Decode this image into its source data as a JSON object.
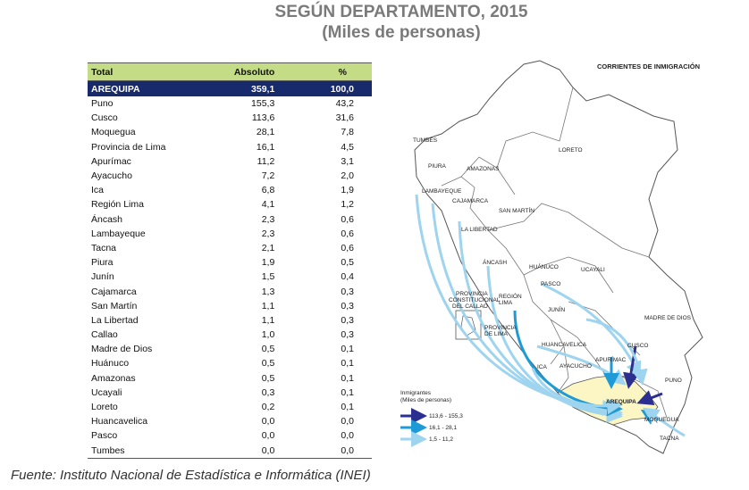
{
  "title": {
    "line1": "SEGÚN DEPARTAMENTO, 2015",
    "line2": "(Miles de personas)"
  },
  "table": {
    "headers": [
      "Total",
      "Absoluto",
      "%"
    ],
    "highlight": {
      "name": "AREQUIPA",
      "abs": "359,1",
      "pct": "100,0"
    },
    "rows": [
      {
        "name": "Puno",
        "abs": "155,3",
        "pct": "43,2"
      },
      {
        "name": "Cusco",
        "abs": "113,6",
        "pct": "31,6"
      },
      {
        "name": "Moquegua",
        "abs": "28,1",
        "pct": "7,8"
      },
      {
        "name": "Provincia de Lima",
        "abs": "16,1",
        "pct": "4,5"
      },
      {
        "name": "Apurímac",
        "abs": "11,2",
        "pct": "3,1"
      },
      {
        "name": "Ayacucho",
        "abs": "7,2",
        "pct": "2,0"
      },
      {
        "name": "Ica",
        "abs": "6,8",
        "pct": "1,9"
      },
      {
        "name": "Región Lima",
        "abs": "4,1",
        "pct": "1,2"
      },
      {
        "name": "Áncash",
        "abs": "2,3",
        "pct": "0,6"
      },
      {
        "name": "Lambayeque",
        "abs": "2,3",
        "pct": "0,6"
      },
      {
        "name": "Tacna",
        "abs": "2,1",
        "pct": "0,6"
      },
      {
        "name": "Piura",
        "abs": "1,9",
        "pct": "0,5"
      },
      {
        "name": "Junín",
        "abs": "1,5",
        "pct": "0,4"
      },
      {
        "name": "Cajamarca",
        "abs": "1,3",
        "pct": "0,3"
      },
      {
        "name": "San Martín",
        "abs": "1,1",
        "pct": "0,3"
      },
      {
        "name": "La Libertad",
        "abs": "1,1",
        "pct": "0,3"
      },
      {
        "name": "Callao",
        "abs": "1,0",
        "pct": "0,3"
      },
      {
        "name": "Madre de Dios",
        "abs": "0,5",
        "pct": "0,1"
      },
      {
        "name": "Huánuco",
        "abs": "0,5",
        "pct": "0,1"
      },
      {
        "name": "Amazonas",
        "abs": "0,5",
        "pct": "0,1"
      },
      {
        "name": "Ucayali",
        "abs": "0,3",
        "pct": "0,1"
      },
      {
        "name": "Loreto",
        "abs": "0,2",
        "pct": "0,1"
      },
      {
        "name": "Huancavelica",
        "abs": "0,0",
        "pct": "0,0"
      },
      {
        "name": "Pasco",
        "abs": "0,0",
        "pct": "0,0"
      },
      {
        "name": "Tumbes",
        "abs": "0,0",
        "pct": "0,0"
      }
    ]
  },
  "map": {
    "title": "CORRIENTES DE INMIGRACIÓN",
    "labels": {
      "tumbes": "TUMBES",
      "piura": "PIURA",
      "amazonas": "AMAZONAS",
      "loreto": "LORETO",
      "lambayeque": "LAMBAYEQUE",
      "cajamarca": "CAJAMARCA",
      "san_martin": "SAN MARTÍN",
      "la_libertad": "LA LIBERTAD",
      "ancash": "ÁNCASH",
      "huanuco": "HUÁNUCO",
      "ucayali": "UCAYALI",
      "pasco": "PASCO",
      "prov_const_1": "PROVINCIA",
      "prov_const_2": "CONSTITUCIONAL",
      "prov_const_3": "DEL CALLAO",
      "region_lima_1": "REGIÓN",
      "region_lima_2": "LIMA",
      "junin": "JUNÍN",
      "madre_de_dios": "MADRE DE DIOS",
      "prov_lima_1": "PROVINCIA",
      "prov_lima_2": "DE LIMA",
      "huancavelica": "HUANCAVELICA",
      "cusco": "CUSCO",
      "apurimac": "APURÍMAC",
      "ica": "ICA",
      "ayacucho": "AYACUCHO",
      "puno": "PUNO",
      "arequipa": "AREQUIPA",
      "moquegua": "MOQUEGUA",
      "tacna": "TACNA"
    },
    "legend": {
      "title1": "Inmigrantes",
      "title2": "(Miles de personas)",
      "items": [
        {
          "label": "113,6 - 155,3",
          "color": "#2b2f8f"
        },
        {
          "label": "16,1 - 28,1",
          "color": "#1e9bd7"
        },
        {
          "label": "1,5 - 11,2",
          "color": "#9ed4ef"
        }
      ]
    },
    "colors": {
      "arequipa": "#fbf6c3",
      "outline": "#555555"
    }
  },
  "source": "Fuente: Instituto Nacional de Estadística e Informática (INEI)"
}
